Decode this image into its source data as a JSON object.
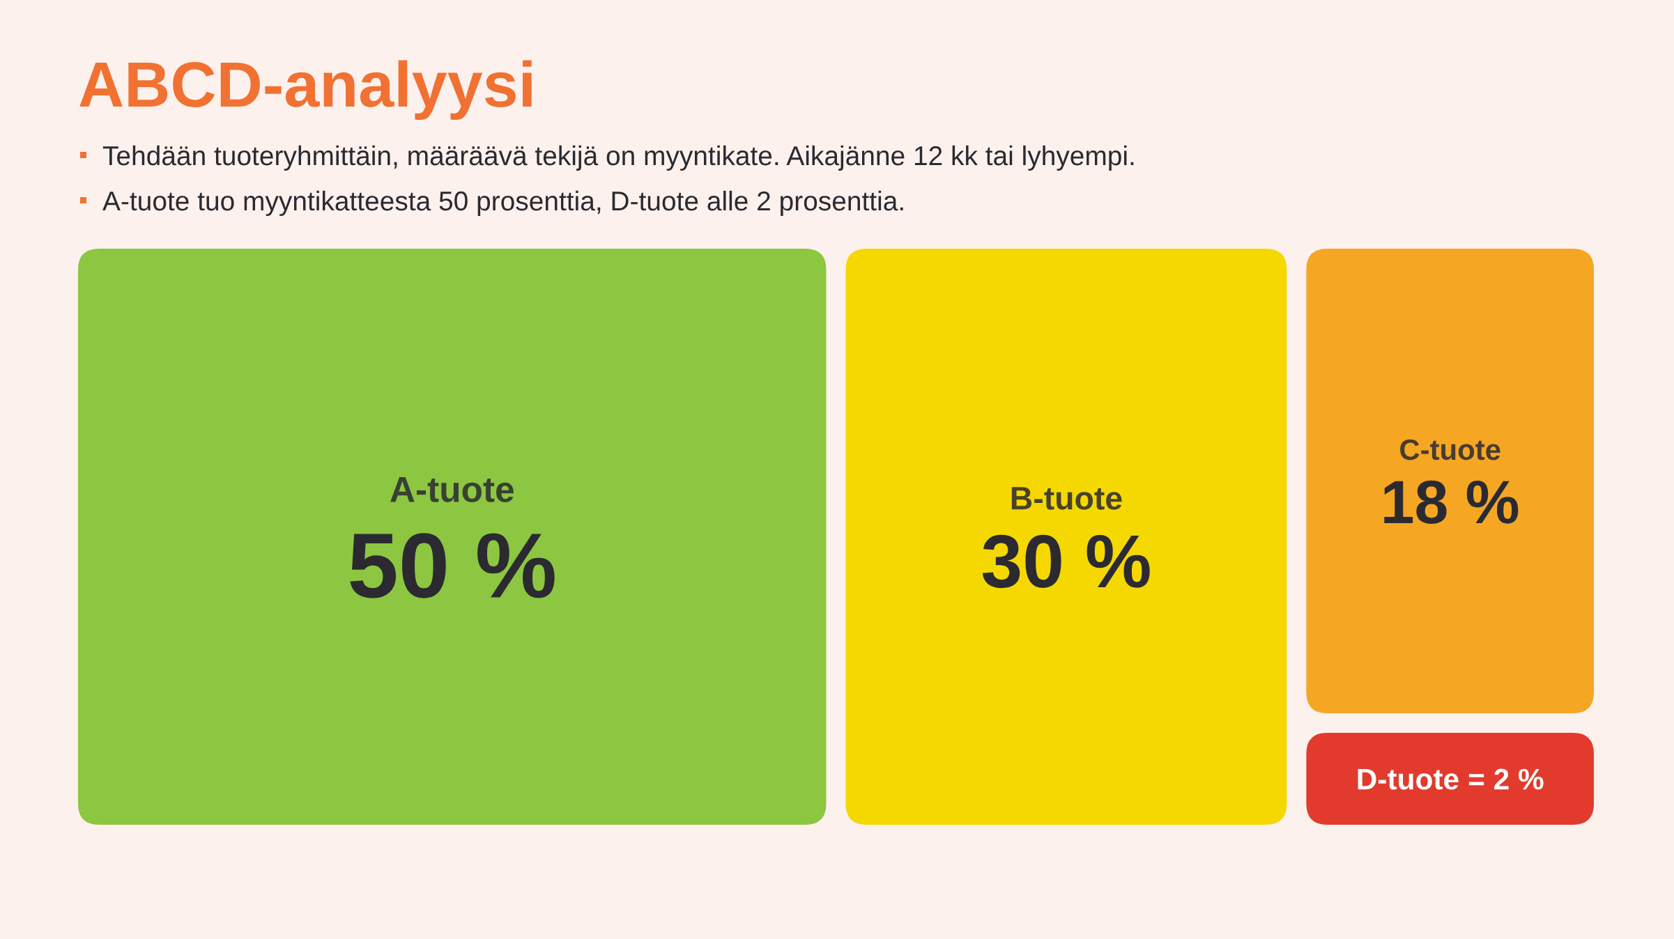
{
  "chart_data": {
    "type": "other",
    "title": "ABCD-analyysi",
    "annotations": [
      "Tehdään tuoteryhmittäin, määräävä tekijä on myyntikate. Aikajänne 12 kk tai lyhyempi.",
      "A-tuote tuo myyntikatteesta 50 prosenttia, D-tuote alle 2 prosenttia."
    ],
    "categories": [
      "A-tuote",
      "B-tuote",
      "C-tuote",
      "D-tuote"
    ],
    "values": [
      50,
      30,
      18,
      2
    ],
    "value_labels": [
      "50 %",
      "30 %",
      "18 %",
      "= 2 %"
    ],
    "colors": [
      "#8dc742",
      "#f5d800",
      "#f5a623",
      "#e23b2e"
    ]
  }
}
